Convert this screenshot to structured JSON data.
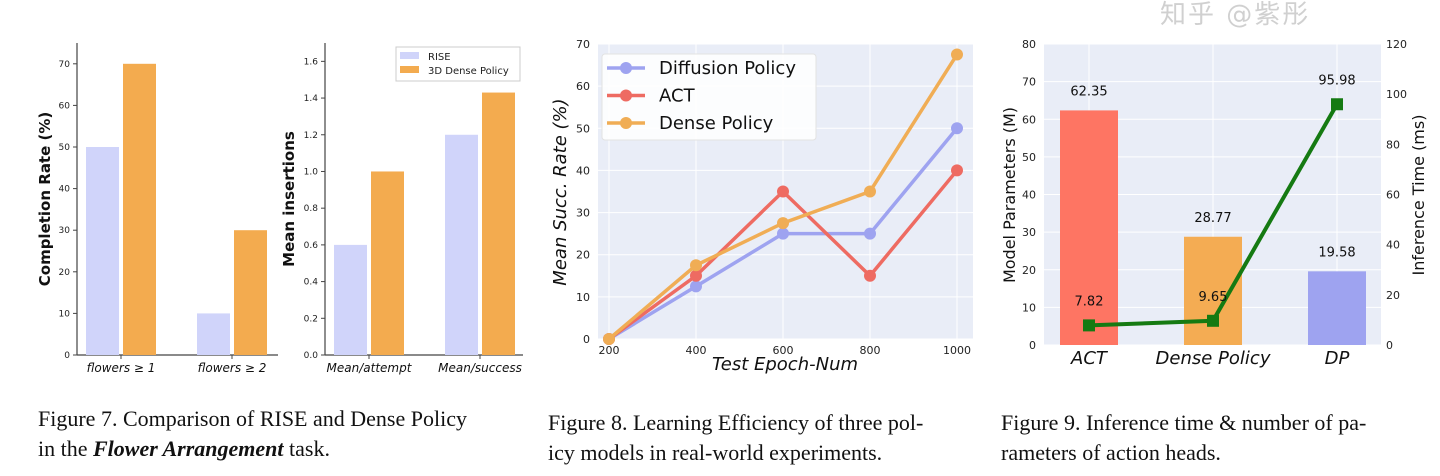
{
  "chart_data": [
    {
      "id": "fig7a",
      "type": "bar",
      "categories": [
        "flowers ≥ 1",
        "flowers ≥ 2"
      ],
      "series": [
        {
          "name": "RISE",
          "values": [
            50,
            10
          ],
          "color": "#d0d4fa"
        },
        {
          "name": "3D Dense Policy",
          "values": [
            70,
            30
          ],
          "color": "#f3ab4f"
        }
      ],
      "ylabel": "Completion Rate (%)",
      "ylim": [
        0,
        75
      ],
      "yticks": [
        0,
        10,
        20,
        30,
        40,
        50,
        60,
        70
      ],
      "grid": false
    },
    {
      "id": "fig7b",
      "type": "bar",
      "categories": [
        "Mean/attempt",
        "Mean/success"
      ],
      "series": [
        {
          "name": "RISE",
          "values": [
            0.6,
            1.2
          ],
          "color": "#d0d4fa"
        },
        {
          "name": "3D Dense Policy",
          "values": [
            1.0,
            1.43
          ],
          "color": "#f3ab4f"
        }
      ],
      "ylabel": "Mean insertions",
      "ylim": [
        0,
        1.7
      ],
      "yticks": [
        "0.0",
        "0.2",
        "0.4",
        "0.6",
        "0.8",
        "1.0",
        "1.2",
        "1.4",
        "1.6"
      ],
      "legend": "top-right",
      "grid": false
    },
    {
      "id": "fig8",
      "type": "line",
      "x": [
        200,
        400,
        600,
        800,
        1000
      ],
      "series": [
        {
          "name": "Diffusion Policy",
          "values": [
            0,
            12.5,
            25,
            25,
            50
          ],
          "color": "#9ea3f0"
        },
        {
          "name": "ACT",
          "values": [
            0,
            15,
            35,
            15,
            40
          ],
          "color": "#ee6b62"
        },
        {
          "name": "Dense Policy",
          "values": [
            0,
            17.5,
            27.5,
            35,
            67.5
          ],
          "color": "#f0ad55"
        }
      ],
      "xlabel": "Test Epoch-Num",
      "ylabel": "Mean Succ. Rate (%)",
      "xticks": [
        200,
        400,
        600,
        800,
        1000
      ],
      "yticks": [
        0,
        10,
        20,
        30,
        40,
        50,
        60,
        70
      ],
      "ylim": [
        0,
        70
      ],
      "legend": "top-left",
      "grid": true,
      "background": "#e9edf7"
    },
    {
      "id": "fig9",
      "type": "bar",
      "categories": [
        "ACT",
        "Dense Policy",
        "DP"
      ],
      "bar_values": [
        62.35,
        28.77,
        19.58
      ],
      "bar_labels": [
        "62.35",
        "28.77",
        "19.58"
      ],
      "bar_colors": [
        "#fe7563",
        "#f4ac53",
        "#9ea3f0"
      ],
      "line_values": [
        7.82,
        9.65,
        95.98
      ],
      "line_labels": [
        "7.82",
        "9.65",
        "95.98"
      ],
      "line_color": "#157a12",
      "ylabel": "Model Parameters (M)",
      "y2label": "Inference Time (ms)",
      "ylim": [
        0,
        80
      ],
      "y2lim": [
        0,
        120
      ],
      "yticks": [
        0,
        10,
        20,
        30,
        40,
        50,
        60,
        70,
        80
      ],
      "y2ticks": [
        0,
        20,
        40,
        60,
        80,
        100,
        120
      ],
      "grid": true,
      "background": "#e9edf7"
    }
  ],
  "captions": {
    "fig7": {
      "line1": "Figure 7. Comparison of RISE and Dense Policy",
      "line2_pre": "in the ",
      "line2_em": "Flower Arrangement",
      "line2_post": " task."
    },
    "fig8": {
      "line1": "Figure 8. Learning Efficiency of three pol-",
      "line2": "icy models in real-world experiments."
    },
    "fig9": {
      "line1": "Figure 9.  Inference time & number of pa-",
      "line2": "rameters of action heads."
    }
  },
  "watermark": "知乎 @紫彤"
}
